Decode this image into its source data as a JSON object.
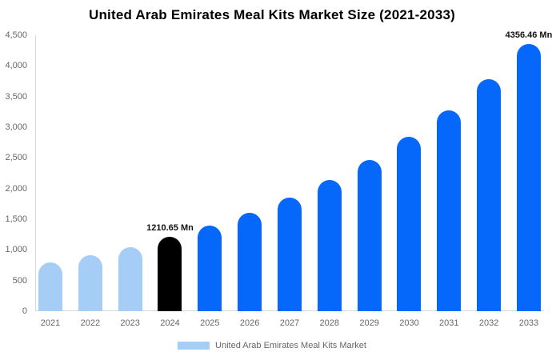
{
  "title": "United Arab Emirates Meal Kits Market Size (2021-2033)",
  "legend": {
    "label": "United Arab Emirates Meal Kits Market",
    "swatch_color": "#a6cdf5"
  },
  "colors": {
    "past": "#a6cdf5",
    "current": "#000000",
    "future": "#0667fb",
    "axis_line": "#d7d7d7",
    "tick_text": "#666666",
    "annotation_text": "#111111",
    "title_text": "#000000"
  },
  "chart_data": {
    "type": "bar",
    "title": "United Arab Emirates Meal Kits Market Size (2021-2033)",
    "xlabel": "",
    "ylabel": "",
    "unit": "Mn",
    "categories": [
      "2021",
      "2022",
      "2023",
      "2024",
      "2025",
      "2026",
      "2027",
      "2028",
      "2029",
      "2030",
      "2031",
      "2032",
      "2033"
    ],
    "values": [
      790,
      911,
      1050,
      1210.65,
      1396,
      1609,
      1855,
      2139,
      2466,
      2843,
      3278,
      3779,
      4356.46
    ],
    "bar_roles": [
      "past",
      "past",
      "past",
      "current",
      "future",
      "future",
      "future",
      "future",
      "future",
      "future",
      "future",
      "future",
      "future"
    ],
    "annotations": [
      {
        "year": "2024",
        "text": "1210.65 Mn"
      },
      {
        "year": "2033",
        "text": "4356.46 Mn"
      }
    ],
    "ylim": [
      0,
      4500
    ],
    "y_tick_values": [
      0,
      500,
      1000,
      1500,
      2000,
      2500,
      3000,
      3500,
      4000,
      4500
    ],
    "y_tick_labels": [
      "0",
      "500",
      "1,000",
      "1,500",
      "2,000",
      "2,500",
      "3,000",
      "3,500",
      "4,000",
      "4,500"
    ],
    "grid": false,
    "legend_position": "bottom",
    "series_name": "United Arab Emirates Meal Kits Market"
  }
}
